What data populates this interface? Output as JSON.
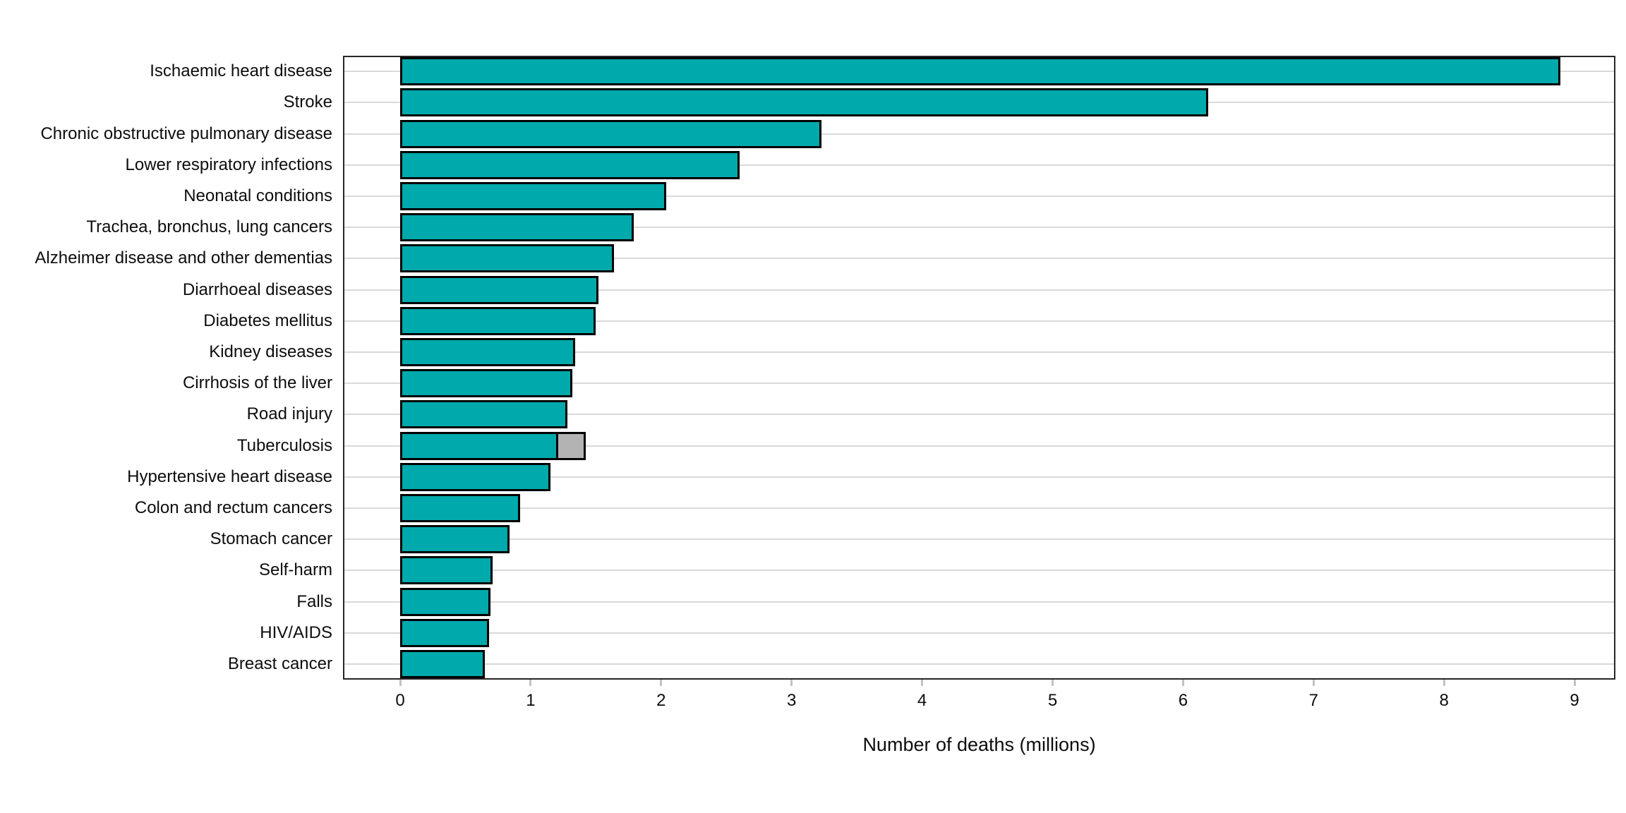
{
  "chart_data": {
    "type": "bar",
    "orientation": "horizontal",
    "title": "",
    "xlabel": "Number of deaths (millions)",
    "ylabel": "",
    "xlim": [
      -0.44,
      9.31
    ],
    "xticks": [
      0,
      1,
      2,
      3,
      4,
      5,
      6,
      7,
      8,
      9
    ],
    "grid": "horizontal-major-only",
    "legend": "none",
    "categories": [
      "Ischaemic heart disease",
      "Stroke",
      "Chronic obstructive pulmonary disease",
      "Lower respiratory infections",
      "Neonatal conditions",
      "Trachea, bronchus, lung cancers",
      "Alzheimer disease and other dementias",
      "Diarrhoeal diseases",
      "Diabetes mellitus",
      "Kidney diseases",
      "Cirrhosis of the liver",
      "Road injury",
      "Tuberculosis",
      "Hypertensive heart disease",
      "Colon and rectum cancers",
      "Stomach cancer",
      "Self-harm",
      "Falls",
      "HIV/AIDS",
      "Breast cancer"
    ],
    "values": [
      8.89,
      6.19,
      3.23,
      2.6,
      2.04,
      1.79,
      1.64,
      1.52,
      1.5,
      1.34,
      1.32,
      1.28,
      1.21,
      1.15,
      0.92,
      0.84,
      0.71,
      0.69,
      0.68,
      0.65
    ],
    "secondary_segment": {
      "category": "Tuberculosis",
      "category_index": 12,
      "value": 0.21,
      "fill": "#b3b3b3"
    },
    "colors": {
      "bar_fill": "#00a9ab",
      "bar_border": "#000000",
      "highlight_fill": "#b3b3b3",
      "gridline": "#d9d9d9",
      "panel_border": "#262626",
      "tick_mark": "#c2c2c2",
      "text": "#0d0d0d",
      "background": "#ffffff"
    }
  }
}
